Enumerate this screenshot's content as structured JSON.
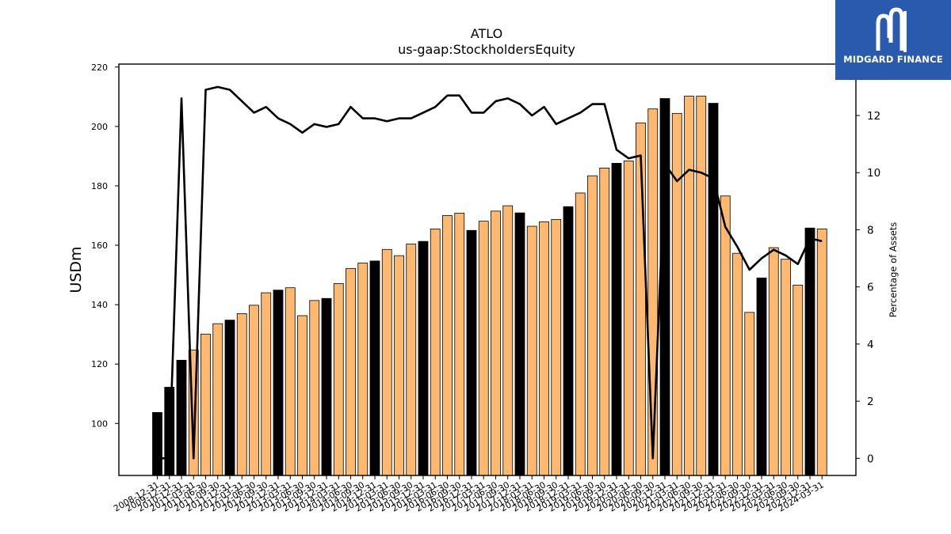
{
  "brand": {
    "name": "MIDGARD FINANCE",
    "icon": "midgard-m-logo-icon"
  },
  "chart_data": {
    "type": "bar+line",
    "title": "ATLO",
    "subtitle": "us-gaap:StockholdersEquity",
    "ylabel": "USDm",
    "y2label": "Percentage of Assets",
    "ylim": [
      82.5,
      221
    ],
    "y2lim": [
      -0.6,
      13.8
    ],
    "yticks": [
      100,
      120,
      140,
      160,
      180,
      200,
      220
    ],
    "y2ticks": [
      0,
      2,
      4,
      6,
      8,
      10,
      12
    ],
    "colors": {
      "annual": "#000000",
      "quarterly": "#ffb870",
      "line": "#000000"
    },
    "categories": [
      "2008-12-31",
      "2009-12-31",
      "2010-12-31",
      "2011-03-31",
      "2011-06-30",
      "2011-09-30",
      "2011-12-31",
      "2012-03-31",
      "2012-06-30",
      "2012-09-30",
      "2012-12-31",
      "2013-03-31",
      "2013-06-30",
      "2013-09-30",
      "2013-12-31",
      "2014-03-31",
      "2014-06-30",
      "2014-09-30",
      "2014-12-31",
      "2015-03-31",
      "2015-06-30",
      "2015-09-30",
      "2015-12-31",
      "2016-03-31",
      "2016-06-30",
      "2016-09-30",
      "2016-12-31",
      "2017-03-31",
      "2017-06-30",
      "2017-09-30",
      "2017-12-31",
      "2018-03-31",
      "2018-06-30",
      "2018-09-30",
      "2018-12-31",
      "2019-03-31",
      "2019-06-30",
      "2019-09-30",
      "2019-12-31",
      "2020-03-31",
      "2020-06-30",
      "2020-09-30",
      "2020-12-31",
      "2021-03-31",
      "2021-06-30",
      "2021-09-30",
      "2021-12-31",
      "2022-03-31",
      "2022-06-30",
      "2022-09-30",
      "2022-12-31",
      "2023-03-31",
      "2023-06-30",
      "2023-09-30",
      "2023-12-31",
      "2024-03-31"
    ],
    "series": [
      {
        "type": "bar",
        "values": [
          103.7,
          112.2,
          121.3,
          124.7,
          130.1,
          133.6,
          134.8,
          137.0,
          139.8,
          144.0,
          144.9,
          145.7,
          136.3,
          141.4,
          142.1,
          147.1,
          152.2,
          154.0,
          154.7,
          158.6,
          156.5,
          160.4,
          161.3,
          165.5,
          170.0,
          170.8,
          165.0,
          168.1,
          171.5,
          173.3,
          170.9,
          166.4,
          167.9,
          168.7,
          173.0,
          177.6,
          183.4,
          186.0,
          187.6,
          188.4,
          201.2,
          205.9,
          209.4,
          204.4,
          210.2,
          210.2,
          207.8,
          176.6,
          157.3,
          137.4,
          149.0,
          159.2,
          155.3,
          146.6,
          165.8,
          165.5
        ],
        "annual": [
          true,
          true,
          true,
          false,
          false,
          false,
          true,
          false,
          false,
          false,
          true,
          false,
          false,
          false,
          true,
          false,
          false,
          false,
          true,
          false,
          false,
          false,
          true,
          false,
          false,
          false,
          true,
          false,
          false,
          false,
          true,
          false,
          false,
          false,
          true,
          false,
          false,
          false,
          true,
          false,
          false,
          false,
          true,
          false,
          false,
          false,
          true,
          false,
          false,
          false,
          true,
          false,
          false,
          false,
          true,
          false
        ]
      },
      {
        "type": "line",
        "values": [
          0.0,
          0.0,
          12.6,
          0.0,
          12.9,
          13.0,
          12.9,
          12.5,
          12.1,
          12.3,
          11.9,
          11.7,
          11.4,
          11.7,
          11.6,
          11.7,
          12.3,
          11.9,
          11.9,
          11.8,
          11.9,
          11.9,
          12.1,
          12.3,
          12.7,
          12.7,
          12.1,
          12.1,
          12.5,
          12.6,
          12.4,
          12.0,
          12.3,
          11.7,
          11.9,
          12.1,
          12.4,
          12.4,
          10.8,
          10.5,
          10.6,
          0.0,
          10.3,
          9.7,
          10.1,
          10.0,
          9.8,
          8.1,
          7.4,
          6.6,
          7.0,
          7.3,
          7.1,
          6.8,
          7.7,
          7.6
        ]
      }
    ]
  }
}
